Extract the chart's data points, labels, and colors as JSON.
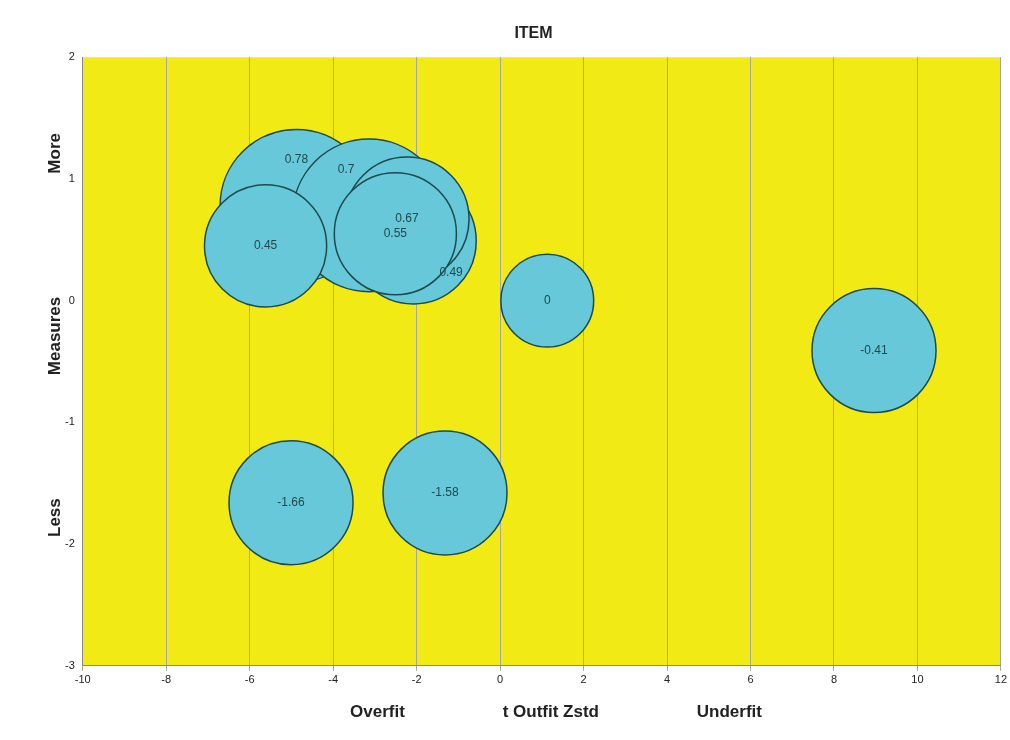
{
  "chart_data": {
    "type": "bubble",
    "title": "ITEM",
    "xlabel": "t Outfit Zstd",
    "ylabel": "Measures",
    "annotations": [
      "Overfit",
      "Underfit",
      "Less",
      "More"
    ],
    "series": [
      {
        "color": "#66c8d8",
        "x": [
          -4.88,
          -3.14,
          -2.08,
          -2.23,
          -2.51,
          -5.62,
          1.13,
          8.96,
          -5.01,
          -1.32
        ],
        "values": [
          0.78,
          0.7,
          0.49,
          0.67,
          0.55,
          0.45,
          0,
          -0.41,
          -1.66,
          -1.58
        ],
        "sizes": [
          1,
          1,
          0.68,
          0.66,
          0.64,
          0.64,
          0.37,
          0.66,
          0.66,
          0.66
        ]
      }
    ],
    "data_labels": true,
    "xlim": [
      -10,
      12
    ],
    "xticks": [
      -10,
      -8,
      -6,
      -4,
      -2,
      0,
      2,
      4,
      6,
      8,
      10,
      12
    ],
    "ylim": [
      -3,
      2
    ],
    "yticks": [
      -3,
      -2,
      -1,
      0,
      1,
      2
    ],
    "grid": "x",
    "legend": false
  }
}
